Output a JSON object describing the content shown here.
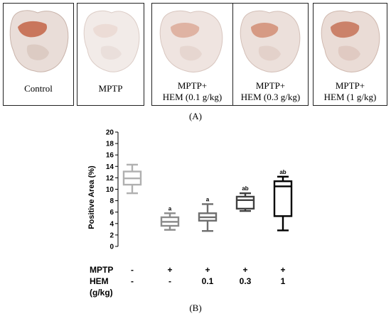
{
  "panel_a": {
    "label": "(A)",
    "panels": [
      {
        "caption_lines": [
          "Control"
        ],
        "stain": "strong"
      },
      {
        "caption_lines": [
          "MPTP"
        ],
        "stain": "faint"
      },
      {
        "caption_lines": [
          "MPTP+",
          "HEM (0.1 g/kg)"
        ],
        "stain": "light"
      },
      {
        "caption_lines": [
          "MPTP+",
          "HEM (0.3 g/kg)"
        ],
        "stain": "medium"
      },
      {
        "caption_lines": [
          "MPTP+",
          "HEM (1 g/kg)"
        ],
        "stain": "medium-strong"
      }
    ]
  },
  "panel_b": {
    "label": "(B)",
    "row_labels": {
      "mptp": "MPTP",
      "hem_line1": "HEM",
      "hem_line2": "(g/kg)"
    },
    "mptp_values": [
      "-",
      "+",
      "+",
      "+",
      "+"
    ],
    "hem_values": [
      "-",
      "-",
      "0.1",
      "0.3",
      "1"
    ]
  },
  "chart_data": {
    "type": "boxplot",
    "ylabel": "Positive Area (%)",
    "ylim": [
      0,
      20
    ],
    "yticks": [
      0,
      2,
      4,
      6,
      8,
      10,
      12,
      14,
      16,
      18,
      20
    ],
    "grid": false,
    "groups": [
      {
        "min": 9.3,
        "q1": 10.8,
        "median": 11.9,
        "q3": 13.1,
        "max": 14.3,
        "annotation": "",
        "color": "#b0b0b0"
      },
      {
        "min": 2.9,
        "q1": 3.6,
        "median": 4.3,
        "q3": 5.1,
        "max": 5.8,
        "annotation": "a",
        "color": "#8c8c8c"
      },
      {
        "min": 2.7,
        "q1": 4.5,
        "median": 5.1,
        "q3": 5.8,
        "max": 7.4,
        "annotation": "a",
        "color": "#6e6e6e"
      },
      {
        "min": 6.2,
        "q1": 6.6,
        "median": 8.1,
        "q3": 8.7,
        "max": 9.3,
        "annotation": "ab",
        "color": "#404040"
      },
      {
        "min": 2.8,
        "q1": 5.3,
        "median": 10.5,
        "q3": 11.4,
        "max": 12.2,
        "annotation": "ab",
        "color": "#000000"
      }
    ]
  }
}
